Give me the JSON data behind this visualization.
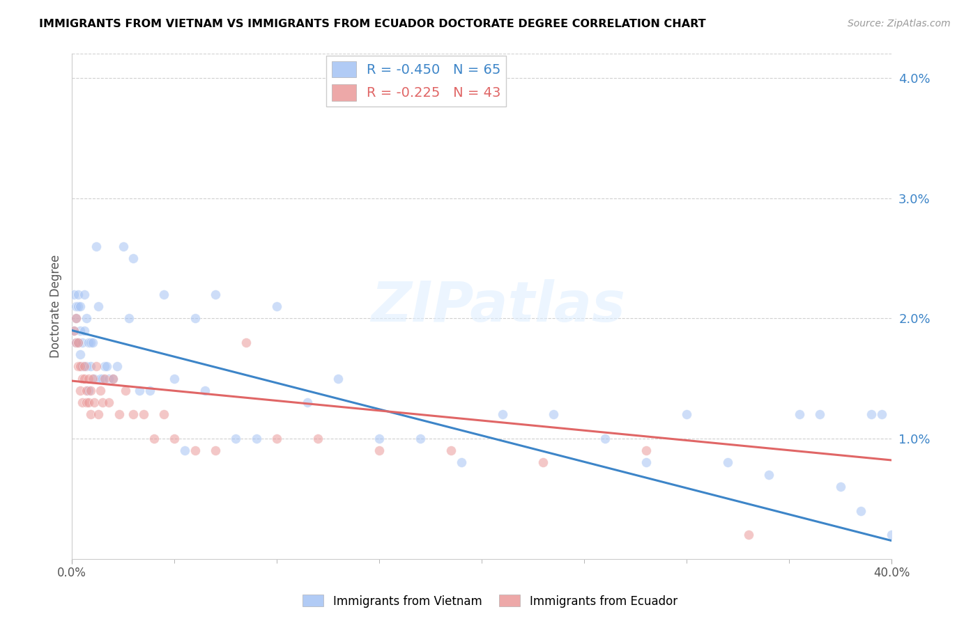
{
  "title": "IMMIGRANTS FROM VIETNAM VS IMMIGRANTS FROM ECUADOR DOCTORATE DEGREE CORRELATION CHART",
  "source": "Source: ZipAtlas.com",
  "ylabel": "Doctorate Degree",
  "xlim": [
    0.0,
    0.4
  ],
  "ylim": [
    0.0,
    0.042
  ],
  "right_yticks": [
    0.01,
    0.02,
    0.03,
    0.04
  ],
  "right_ytick_labels": [
    "1.0%",
    "2.0%",
    "3.0%",
    "4.0%"
  ],
  "x_minor_ticks": [
    0.05,
    0.1,
    0.15,
    0.2,
    0.25,
    0.3,
    0.35
  ],
  "watermark": "ZIPatlas",
  "legend_vietnam": "R = -0.450   N = 65",
  "legend_ecuador": "R = -0.225   N = 43",
  "vietnam_color": "#a4c2f4",
  "ecuador_color": "#ea9999",
  "vietnam_line_color": "#3d85c8",
  "ecuador_line_color": "#e06666",
  "vietnam_scatter_x": [
    0.001,
    0.001,
    0.002,
    0.002,
    0.002,
    0.003,
    0.003,
    0.003,
    0.004,
    0.004,
    0.004,
    0.005,
    0.005,
    0.006,
    0.006,
    0.007,
    0.007,
    0.008,
    0.008,
    0.009,
    0.009,
    0.01,
    0.011,
    0.012,
    0.013,
    0.014,
    0.015,
    0.016,
    0.017,
    0.018,
    0.02,
    0.022,
    0.025,
    0.028,
    0.03,
    0.033,
    0.038,
    0.045,
    0.05,
    0.055,
    0.06,
    0.065,
    0.07,
    0.08,
    0.09,
    0.1,
    0.115,
    0.13,
    0.15,
    0.17,
    0.19,
    0.21,
    0.235,
    0.26,
    0.28,
    0.3,
    0.32,
    0.34,
    0.355,
    0.365,
    0.375,
    0.385,
    0.39,
    0.395,
    0.4
  ],
  "vietnam_scatter_y": [
    0.022,
    0.019,
    0.021,
    0.018,
    0.02,
    0.022,
    0.018,
    0.021,
    0.019,
    0.017,
    0.021,
    0.018,
    0.016,
    0.022,
    0.019,
    0.02,
    0.016,
    0.018,
    0.014,
    0.018,
    0.016,
    0.018,
    0.015,
    0.026,
    0.021,
    0.015,
    0.015,
    0.016,
    0.016,
    0.015,
    0.015,
    0.016,
    0.026,
    0.02,
    0.025,
    0.014,
    0.014,
    0.022,
    0.015,
    0.009,
    0.02,
    0.014,
    0.022,
    0.01,
    0.01,
    0.021,
    0.013,
    0.015,
    0.01,
    0.01,
    0.008,
    0.012,
    0.012,
    0.01,
    0.008,
    0.012,
    0.008,
    0.007,
    0.012,
    0.012,
    0.006,
    0.004,
    0.012,
    0.012,
    0.002
  ],
  "ecuador_scatter_x": [
    0.001,
    0.002,
    0.002,
    0.003,
    0.003,
    0.004,
    0.004,
    0.005,
    0.005,
    0.006,
    0.006,
    0.007,
    0.007,
    0.008,
    0.008,
    0.009,
    0.009,
    0.01,
    0.011,
    0.012,
    0.013,
    0.014,
    0.015,
    0.016,
    0.018,
    0.02,
    0.023,
    0.026,
    0.03,
    0.035,
    0.04,
    0.045,
    0.05,
    0.06,
    0.07,
    0.085,
    0.1,
    0.12,
    0.15,
    0.185,
    0.23,
    0.28,
    0.33
  ],
  "ecuador_scatter_y": [
    0.019,
    0.02,
    0.018,
    0.016,
    0.018,
    0.016,
    0.014,
    0.015,
    0.013,
    0.016,
    0.015,
    0.014,
    0.013,
    0.015,
    0.013,
    0.014,
    0.012,
    0.015,
    0.013,
    0.016,
    0.012,
    0.014,
    0.013,
    0.015,
    0.013,
    0.015,
    0.012,
    0.014,
    0.012,
    0.012,
    0.01,
    0.012,
    0.01,
    0.009,
    0.009,
    0.018,
    0.01,
    0.01,
    0.009,
    0.009,
    0.008,
    0.009,
    0.002
  ],
  "vietnam_trendline_x": [
    0.0,
    0.4
  ],
  "vietnam_trendline_y": [
    0.019,
    0.0015
  ],
  "ecuador_trendline_x": [
    0.0,
    0.4
  ],
  "ecuador_trendline_y": [
    0.0148,
    0.0082
  ],
  "background_color": "#ffffff",
  "grid_color": "#d0d0d0",
  "title_color": "#000000",
  "right_axis_color": "#3d85c8",
  "scatter_size": 100,
  "scatter_alpha": 0.55,
  "scatter_edgewidth": 0.5
}
